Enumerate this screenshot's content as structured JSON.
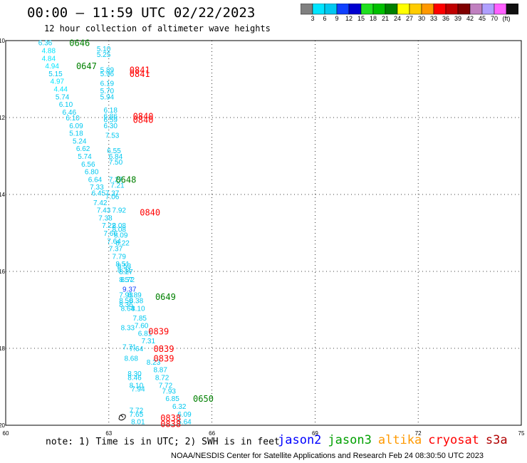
{
  "header": {
    "title": "00:00 – 11:59 UTC 02/22/2023",
    "subtitle": "12 hour collection of altimeter wave heights"
  },
  "colorbar": {
    "colors": [
      "#808080",
      "#00e5ff",
      "#00c8f0",
      "#1040ff",
      "#0000d0",
      "#20e020",
      "#00c000",
      "#008000",
      "#ffff00",
      "#ffcc00",
      "#ff9900",
      "#ff0000",
      "#c00000",
      "#800000",
      "#c080c0",
      "#b0a0ff",
      "#ff60ff",
      "#101010"
    ],
    "labels": [
      "3",
      "6",
      "9",
      "12",
      "15",
      "18",
      "21",
      "24",
      "27",
      "30",
      "33",
      "36",
      "39",
      "42",
      "45",
      "70",
      "(ft)"
    ]
  },
  "map": {
    "x_ticks": [
      "60",
      "63",
      "66",
      "69",
      "72",
      "75"
    ],
    "y_ticks": [
      "-10",
      "-12",
      "-14",
      "-16",
      "-18",
      "-20"
    ],
    "x_range": [
      60,
      75
    ],
    "y_range": [
      -20,
      -10
    ],
    "grid": "dotted"
  },
  "time_labels": [
    {
      "text": "0646",
      "color": "#008000",
      "lon": 61.85,
      "lat": -10.05
    },
    {
      "text": "0647",
      "color": "#008000",
      "lon": 62.05,
      "lat": -10.65
    },
    {
      "text": "0841",
      "color": "#ff0000",
      "lon": 63.6,
      "lat": -10.75
    },
    {
      "text": "0841",
      "color": "#ff0000",
      "lon": 63.6,
      "lat": -10.85
    },
    {
      "text": "0840",
      "color": "#ff0000",
      "lon": 63.7,
      "lat": -11.95
    },
    {
      "text": "0840",
      "color": "#ff0000",
      "lon": 63.7,
      "lat": -12.05
    },
    {
      "text": "0648",
      "color": "#008000",
      "lon": 63.2,
      "lat": -13.6
    },
    {
      "text": "0840",
      "color": "#ff0000",
      "lon": 63.9,
      "lat": -14.45
    },
    {
      "text": "0649",
      "color": "#008000",
      "lon": 64.35,
      "lat": -16.65
    },
    {
      "text": "0839",
      "color": "#ff0000",
      "lon": 64.15,
      "lat": -17.55
    },
    {
      "text": "0839",
      "color": "#ff0000",
      "lon": 64.3,
      "lat": -18.0
    },
    {
      "text": "0839",
      "color": "#ff0000",
      "lon": 64.3,
      "lat": -18.25
    },
    {
      "text": "0650",
      "color": "#008000",
      "lon": 65.45,
      "lat": -19.3
    },
    {
      "text": "0838",
      "color": "#ff0000",
      "lon": 64.5,
      "lat": -19.8
    },
    {
      "text": "0838",
      "color": "#ff0000",
      "lon": 64.5,
      "lat": -19.95
    }
  ],
  "observations": [
    {
      "v": "6.36",
      "lon": 61.15,
      "lat": -10.05,
      "c": "#00c8f0"
    },
    {
      "v": "5.10",
      "lon": 62.85,
      "lat": -10.2,
      "c": "#00c8f0"
    },
    {
      "v": "4.88",
      "lon": 61.25,
      "lat": -10.25,
      "c": "#00e5ff"
    },
    {
      "v": "5.25",
      "lon": 62.85,
      "lat": -10.35,
      "c": "#00c8f0"
    },
    {
      "v": "4.84",
      "lon": 61.25,
      "lat": -10.45,
      "c": "#00e5ff"
    },
    {
      "v": "4.94",
      "lon": 61.35,
      "lat": -10.65,
      "c": "#00e5ff"
    },
    {
      "v": "5.89",
      "lon": 62.95,
      "lat": -10.75,
      "c": "#00c8f0"
    },
    {
      "v": "5.15",
      "lon": 61.45,
      "lat": -10.85,
      "c": "#00c8f0"
    },
    {
      "v": "5.96",
      "lon": 62.95,
      "lat": -10.85,
      "c": "#00c8f0"
    },
    {
      "v": "4.97",
      "lon": 61.5,
      "lat": -11.05,
      "c": "#00e5ff"
    },
    {
      "v": "6.19",
      "lon": 62.95,
      "lat": -11.1,
      "c": "#00c8f0"
    },
    {
      "v": "4.44",
      "lon": 61.6,
      "lat": -11.25,
      "c": "#00e5ff"
    },
    {
      "v": "5.70",
      "lon": 62.95,
      "lat": -11.3,
      "c": "#00c8f0"
    },
    {
      "v": "5.74",
      "lon": 61.65,
      "lat": -11.45,
      "c": "#00c8f0"
    },
    {
      "v": "5.94",
      "lon": 62.95,
      "lat": -11.45,
      "c": "#00c8f0"
    },
    {
      "v": "6.10",
      "lon": 61.75,
      "lat": -11.65,
      "c": "#00c8f0"
    },
    {
      "v": "6.18",
      "lon": 63.05,
      "lat": -11.8,
      "c": "#00c8f0"
    },
    {
      "v": "6.46",
      "lon": 61.85,
      "lat": -11.85,
      "c": "#00c8f0"
    },
    {
      "v": "6.86",
      "lon": 63.05,
      "lat": -11.95,
      "c": "#00c8f0"
    },
    {
      "v": "6.10",
      "lon": 61.95,
      "lat": -12.0,
      "c": "#00c8f0"
    },
    {
      "v": "6.59",
      "lon": 63.05,
      "lat": -12.05,
      "c": "#00c8f0"
    },
    {
      "v": "6.09",
      "lon": 62.05,
      "lat": -12.2,
      "c": "#00c8f0"
    },
    {
      "v": "6.30",
      "lon": 63.05,
      "lat": -12.2,
      "c": "#00c8f0"
    },
    {
      "v": "5.18",
      "lon": 62.05,
      "lat": -12.4,
      "c": "#00c8f0"
    },
    {
      "v": "7.53",
      "lon": 63.1,
      "lat": -12.45,
      "c": "#00c8f0"
    },
    {
      "v": "5.24",
      "lon": 62.15,
      "lat": -12.6,
      "c": "#00c8f0"
    },
    {
      "v": "6.62",
      "lon": 62.25,
      "lat": -12.8,
      "c": "#00c8f0"
    },
    {
      "v": "6.55",
      "lon": 63.15,
      "lat": -12.85,
      "c": "#00c8f0"
    },
    {
      "v": "5.74",
      "lon": 62.3,
      "lat": -13.0,
      "c": "#00c8f0"
    },
    {
      "v": "6.84",
      "lon": 63.2,
      "lat": -13.0,
      "c": "#00c8f0"
    },
    {
      "v": "6.56",
      "lon": 62.4,
      "lat": -13.2,
      "c": "#00c8f0"
    },
    {
      "v": "7.50",
      "lon": 63.2,
      "lat": -13.15,
      "c": "#00c8f0"
    },
    {
      "v": "6.80",
      "lon": 62.5,
      "lat": -13.4,
      "c": "#00c8f0"
    },
    {
      "v": "6.64",
      "lon": 62.6,
      "lat": -13.6,
      "c": "#00c8f0"
    },
    {
      "v": "7.27",
      "lon": 63.2,
      "lat": -13.6,
      "c": "#00c8f0"
    },
    {
      "v": "7.21",
      "lon": 63.25,
      "lat": -13.75,
      "c": "#00c8f0"
    },
    {
      "v": "7.33",
      "lon": 62.65,
      "lat": -13.8,
      "c": "#00c8f0"
    },
    {
      "v": "6.45",
      "lon": 62.7,
      "lat": -13.95,
      "c": "#00c8f0"
    },
    {
      "v": "7.37",
      "lon": 63.1,
      "lat": -13.95,
      "c": "#00c8f0"
    },
    {
      "v": "7.06",
      "lon": 63.1,
      "lat": -14.05,
      "c": "#00c8f0"
    },
    {
      "v": "7.42",
      "lon": 62.75,
      "lat": -14.2,
      "c": "#00c8f0"
    },
    {
      "v": "7.43",
      "lon": 62.85,
      "lat": -14.4,
      "c": "#00c8f0"
    },
    {
      "v": "7.92",
      "lon": 63.3,
      "lat": -14.4,
      "c": "#00c8f0"
    },
    {
      "v": "7.38",
      "lon": 62.9,
      "lat": -14.6,
      "c": "#00c8f0"
    },
    {
      "v": "7.22",
      "lon": 63.0,
      "lat": -14.8,
      "c": "#00c8f0"
    },
    {
      "v": "8.08",
      "lon": 63.3,
      "lat": -14.8,
      "c": "#00c8f0"
    },
    {
      "v": "8.08",
      "lon": 63.3,
      "lat": -14.9,
      "c": "#00c8f0"
    },
    {
      "v": "7.66",
      "lon": 63.05,
      "lat": -15.0,
      "c": "#00c8f0"
    },
    {
      "v": "8.09",
      "lon": 63.35,
      "lat": -15.05,
      "c": "#00c8f0"
    },
    {
      "v": "7.64",
      "lon": 63.15,
      "lat": -15.2,
      "c": "#00c8f0"
    },
    {
      "v": "8.22",
      "lon": 63.4,
      "lat": -15.25,
      "c": "#00c8f0"
    },
    {
      "v": "7.37",
      "lon": 63.2,
      "lat": -15.4,
      "c": "#00c8f0"
    },
    {
      "v": "7.79",
      "lon": 63.3,
      "lat": -15.6,
      "c": "#00c8f0"
    },
    {
      "v": "8.51",
      "lon": 63.4,
      "lat": -15.8,
      "c": "#00c8f0"
    },
    {
      "v": "8.53",
      "lon": 63.45,
      "lat": -15.85,
      "c": "#00c8f0"
    },
    {
      "v": "8.31",
      "lon": 63.45,
      "lat": -15.95,
      "c": "#00c8f0"
    },
    {
      "v": "8.27",
      "lon": 63.5,
      "lat": -16.0,
      "c": "#00c8f0"
    },
    {
      "v": "8.57",
      "lon": 63.5,
      "lat": -16.2,
      "c": "#00c8f0"
    },
    {
      "v": "8.72",
      "lon": 63.55,
      "lat": -16.2,
      "c": "#00c8f0"
    },
    {
      "v": "9.37",
      "lon": 63.6,
      "lat": -16.45,
      "c": "#1040ff"
    },
    {
      "v": "7.93",
      "lon": 63.5,
      "lat": -16.6,
      "c": "#00c8f0"
    },
    {
      "v": "8.89",
      "lon": 63.75,
      "lat": -16.6,
      "c": "#00c8f0"
    },
    {
      "v": "8.50",
      "lon": 63.5,
      "lat": -16.75,
      "c": "#00c8f0"
    },
    {
      "v": "8.38",
      "lon": 63.8,
      "lat": -16.75,
      "c": "#00c8f0"
    },
    {
      "v": "8.36",
      "lon": 63.5,
      "lat": -16.85,
      "c": "#00c8f0"
    },
    {
      "v": "8.64",
      "lon": 63.55,
      "lat": -16.95,
      "c": "#00c8f0"
    },
    {
      "v": "8.10",
      "lon": 63.85,
      "lat": -16.95,
      "c": "#00c8f0"
    },
    {
      "v": "7.85",
      "lon": 63.9,
      "lat": -17.2,
      "c": "#00c8f0"
    },
    {
      "v": "7.60",
      "lon": 63.95,
      "lat": -17.4,
      "c": "#00c8f0"
    },
    {
      "v": "8.33",
      "lon": 63.55,
      "lat": -17.45,
      "c": "#00c8f0"
    },
    {
      "v": "6.81",
      "lon": 64.05,
      "lat": -17.6,
      "c": "#00c8f0"
    },
    {
      "v": "7.31",
      "lon": 64.15,
      "lat": -17.8,
      "c": "#00c8f0"
    },
    {
      "v": "7.71",
      "lon": 63.6,
      "lat": -17.95,
      "c": "#00c8f0"
    },
    {
      "v": "7.64",
      "lon": 63.8,
      "lat": -18.0,
      "c": "#00c8f0"
    },
    {
      "v": "8.68",
      "lon": 63.65,
      "lat": -18.25,
      "c": "#00c8f0"
    },
    {
      "v": "8.23",
      "lon": 64.3,
      "lat": -18.35,
      "c": "#00c8f0"
    },
    {
      "v": "8.87",
      "lon": 64.5,
      "lat": -18.55,
      "c": "#00c8f0"
    },
    {
      "v": "8.30",
      "lon": 63.75,
      "lat": -18.65,
      "c": "#00c8f0"
    },
    {
      "v": "8.46",
      "lon": 63.75,
      "lat": -18.75,
      "c": "#00c8f0"
    },
    {
      "v": "8.72",
      "lon": 64.55,
      "lat": -18.75,
      "c": "#00c8f0"
    },
    {
      "v": "8.10",
      "lon": 63.8,
      "lat": -18.95,
      "c": "#00c8f0"
    },
    {
      "v": "7.72",
      "lon": 64.65,
      "lat": -18.95,
      "c": "#00c8f0"
    },
    {
      "v": "7.94",
      "lon": 63.85,
      "lat": -19.05,
      "c": "#00c8f0"
    },
    {
      "v": "7.93",
      "lon": 64.75,
      "lat": -19.1,
      "c": "#00c8f0"
    },
    {
      "v": "6.85",
      "lon": 64.85,
      "lat": -19.3,
      "c": "#00c8f0"
    },
    {
      "v": "6.32",
      "lon": 65.05,
      "lat": -19.5,
      "c": "#00c8f0"
    },
    {
      "v": "7.72",
      "lon": 63.8,
      "lat": -19.6,
      "c": "#00c8f0"
    },
    {
      "v": "7.65",
      "lon": 63.8,
      "lat": -19.7,
      "c": "#00c8f0"
    },
    {
      "v": "6.09",
      "lon": 65.2,
      "lat": -19.7,
      "c": "#00c8f0"
    },
    {
      "v": "8.01",
      "lon": 63.85,
      "lat": -19.9,
      "c": "#00c8f0"
    },
    {
      "v": "5.64",
      "lon": 65.2,
      "lat": -19.9,
      "c": "#00c8f0"
    }
  ],
  "note": "note: 1) Time is in UTC; 2) SWH is in feet",
  "legend": [
    {
      "name": "jason2",
      "color": "#0000ff"
    },
    {
      "name": "jason3",
      "color": "#00a000"
    },
    {
      "name": "altika",
      "color": "#ff9900"
    },
    {
      "name": "cryosat",
      "color": "#ff0000"
    },
    {
      "name": "s3a",
      "color": "#b00000"
    }
  ],
  "credit": "NOAA/NESDIS Center for Satellite Applications and Research   Feb 24 08:30:50 UTC 2023"
}
